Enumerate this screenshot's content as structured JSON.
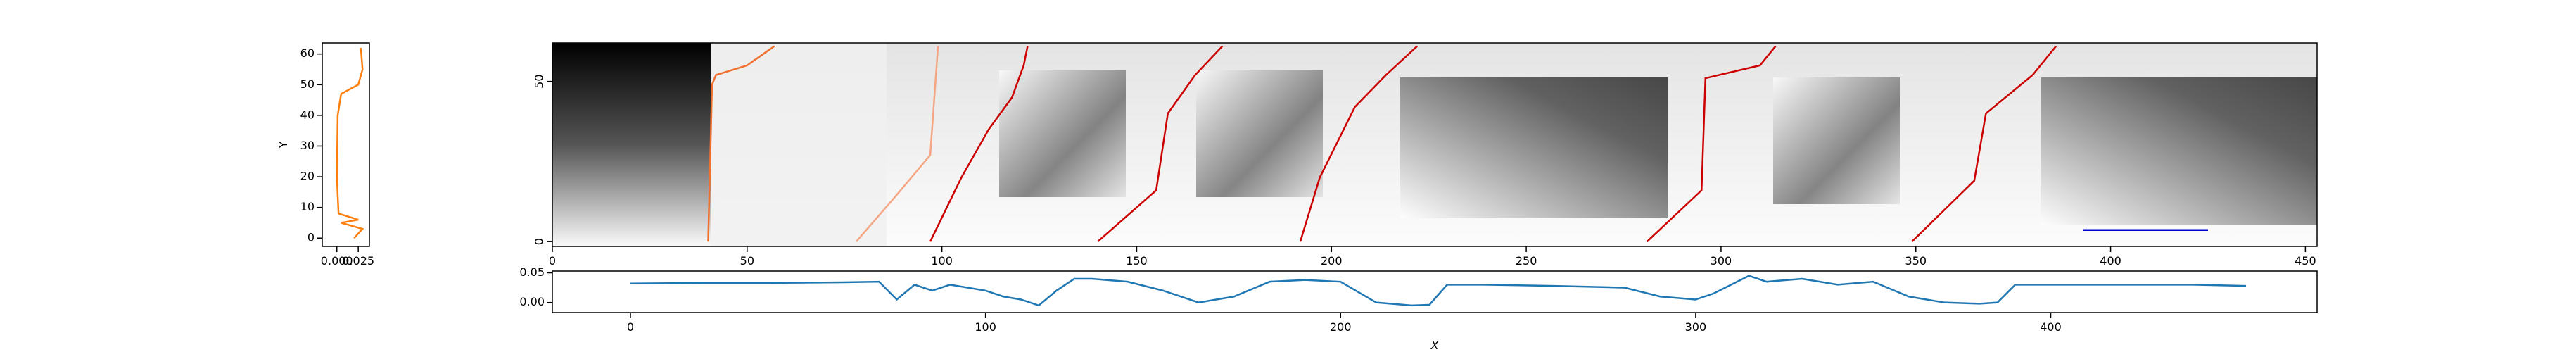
{
  "chart_data": [
    {
      "type": "line",
      "ylabel": "Y",
      "xlim": [
        -0.017,
        0.038
      ],
      "xticks": [
        {
          "value": 0,
          "label": "0.000"
        },
        {
          "value": 0.025,
          "label": "0.025"
        }
      ],
      "ylim": [
        -2.7,
        63.6
      ],
      "yticks": [
        0,
        10,
        20,
        30,
        40,
        50,
        60
      ],
      "series": [
        {
          "color": "#ff7f0e",
          "x": [
            0.02,
            0.03,
            0.005,
            0.025,
            0.002,
            0.0,
            0.001,
            0.005,
            0.025,
            0.03,
            0.028
          ],
          "values": [
            0,
            3,
            5,
            6,
            8,
            20,
            40,
            47,
            50,
            55,
            62
          ]
        }
      ]
    },
    {
      "type": "line",
      "xlim": [
        0,
        453
      ],
      "xticks": [
        0,
        50,
        100,
        150,
        200,
        250,
        300,
        350,
        400,
        450
      ],
      "ylim": [
        -1.5,
        62
      ],
      "yticks": [
        0,
        50
      ],
      "series": [
        {
          "color": "#f07030",
          "x": [
            40,
            41,
            42,
            50,
            57
          ],
          "values": [
            0,
            49,
            52,
            55,
            61
          ]
        },
        {
          "color": "#f4a582",
          "x": [
            78,
            88,
            97,
            99
          ],
          "values": [
            0,
            14,
            27,
            61
          ]
        },
        {
          "color": "#cc0000",
          "x": [
            97,
            105,
            112,
            118,
            121,
            122
          ],
          "values": [
            0,
            20,
            35,
            45,
            55,
            61
          ]
        },
        {
          "color": "#cc0000",
          "x": [
            140,
            155,
            158,
            165,
            172
          ],
          "values": [
            0,
            16,
            40,
            52,
            61
          ]
        },
        {
          "color": "#cc0000",
          "x": [
            192,
            197,
            206,
            214,
            222
          ],
          "values": [
            0,
            20,
            42,
            52,
            61
          ]
        },
        {
          "color": "#cc0000",
          "x": [
            281,
            295,
            296,
            310,
            314
          ],
          "values": [
            0,
            16,
            51,
            55,
            61
          ]
        },
        {
          "color": "#cc0000",
          "x": [
            349,
            365,
            368,
            380,
            386
          ],
          "values": [
            0,
            19,
            40,
            52,
            61
          ]
        },
        {
          "color": "#0000cc",
          "x": [
            393,
            425
          ],
          "values": [
            3.6,
            3.6
          ]
        }
      ]
    },
    {
      "type": "line",
      "xlabel": "X",
      "xlim": [
        -22,
        475
      ],
      "xticks": [
        0,
        100,
        200,
        300,
        400
      ],
      "ylim": [
        -0.017,
        0.053
      ],
      "yticks": [
        {
          "value": 0,
          "label": "0.00"
        },
        {
          "value": 0.05,
          "label": "0.05"
        }
      ],
      "x": [
        0,
        20,
        40,
        60,
        70,
        75,
        80,
        85,
        90,
        100,
        105,
        110,
        115,
        120,
        125,
        130,
        140,
        150,
        160,
        170,
        180,
        190,
        200,
        210,
        220,
        225,
        230,
        240,
        260,
        280,
        290,
        300,
        305,
        310,
        315,
        320,
        330,
        340,
        350,
        360,
        370,
        380,
        385,
        390,
        400,
        420,
        440,
        455
      ],
      "series": [
        {
          "color": "#1f77b4",
          "values": [
            0.032,
            0.033,
            0.033,
            0.034,
            0.035,
            0.005,
            0.03,
            0.02,
            0.03,
            0.02,
            0.01,
            0.005,
            -0.005,
            0.02,
            0.04,
            0.04,
            0.035,
            0.02,
            0.0,
            0.01,
            0.035,
            0.038,
            0.035,
            0.0,
            -0.005,
            -0.004,
            0.03,
            0.03,
            0.028,
            0.025,
            0.01,
            0.005,
            0.015,
            0.03,
            0.045,
            0.035,
            0.04,
            0.03,
            0.035,
            0.01,
            0.0,
            -0.002,
            0.0,
            0.03,
            0.03,
            0.03,
            0.03,
            0.028
          ]
        }
      ]
    }
  ]
}
